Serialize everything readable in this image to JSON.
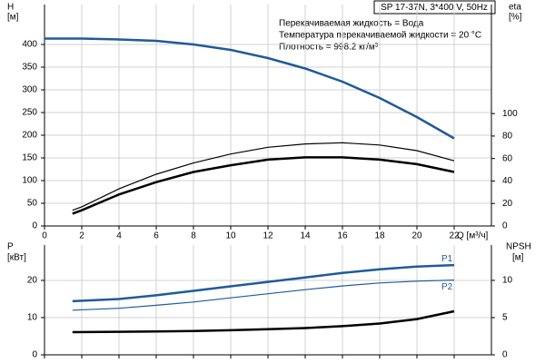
{
  "chart_data": [
    {
      "type": "line",
      "title": "SP 17-37N, 3*400 V, 50Hz",
      "annotations": [
        "Перекачиваемая жидкость = Вода",
        "Температура перекачиваемой жидкости = 20 °C",
        "Плотность = 998.2 кг/м³"
      ],
      "xlabel": "Q [м³/ч]",
      "ylabel": "H",
      "yunit": "[м]",
      "y2label": "eta",
      "y2unit": "[%]",
      "xlim": [
        0,
        24
      ],
      "xticks": [
        0,
        2,
        4,
        6,
        8,
        10,
        12,
        14,
        16,
        18,
        20,
        22
      ],
      "ylim": [
        0,
        488
      ],
      "yticks": [
        0,
        50,
        100,
        150,
        200,
        250,
        300,
        350,
        400
      ],
      "y2lim": [
        0,
        197
      ],
      "y2ticks": [
        0,
        20,
        40,
        60,
        80,
        100
      ],
      "grid": true,
      "series": [
        {
          "color": "#1f5b99",
          "width": 2.5,
          "axis": "y",
          "x": [
            0,
            2,
            4,
            6,
            8,
            10,
            12,
            14,
            16,
            18,
            20,
            22
          ],
          "values": [
            413,
            413,
            411,
            408,
            400,
            388,
            370,
            347,
            318,
            282,
            240,
            193
          ]
        },
        {
          "color": "#000000",
          "width": 1.2,
          "axis": "y2",
          "x": [
            1.5,
            2,
            4,
            6,
            8,
            10,
            12,
            14,
            16,
            18,
            20,
            22
          ],
          "values": [
            14,
            17,
            33,
            46,
            56,
            64,
            70,
            73,
            74,
            72,
            67,
            58
          ]
        },
        {
          "color": "#000000",
          "width": 2.5,
          "axis": "y2",
          "x": [
            1.5,
            2,
            4,
            6,
            8,
            10,
            12,
            14,
            16,
            18,
            20,
            22
          ],
          "values": [
            11,
            14,
            28,
            39,
            48,
            54,
            59,
            61,
            61,
            59,
            55,
            48
          ]
        }
      ]
    },
    {
      "type": "line",
      "ylabel": "P",
      "yunit": "[кВт]",
      "y2label": "NPSH",
      "y2unit": "[м]",
      "xlim": [
        0,
        24
      ],
      "ylim": [
        0,
        29.5
      ],
      "yticks": [
        0,
        10,
        20
      ],
      "y2lim": [
        0,
        14.75
      ],
      "y2ticks": [
        0,
        5,
        10
      ],
      "grid": true,
      "series": [
        {
          "name": "P1",
          "color": "#1f5b99",
          "width": 2.5,
          "axis": "y",
          "x": [
            1.5,
            4,
            6,
            8,
            10,
            12,
            14,
            16,
            18,
            20,
            22
          ],
          "values": [
            14.4,
            15,
            16,
            17.2,
            18.4,
            19.6,
            20.8,
            22,
            23,
            23.7,
            24.1
          ]
        },
        {
          "name": "P2",
          "color": "#1f5b99",
          "width": 1.2,
          "axis": "y",
          "x": [
            1.5,
            4,
            6,
            8,
            10,
            12,
            14,
            16,
            18,
            20,
            22
          ],
          "values": [
            12,
            12.5,
            13.3,
            14.2,
            15.3,
            16.4,
            17.5,
            18.5,
            19.3,
            19.8,
            20.1
          ]
        },
        {
          "color": "#000000",
          "width": 2.5,
          "axis": "y2",
          "x": [
            1.5,
            4,
            6,
            8,
            10,
            12,
            14,
            16,
            18,
            20,
            22
          ],
          "values": [
            3.05,
            3.1,
            3.15,
            3.2,
            3.3,
            3.45,
            3.6,
            3.85,
            4.2,
            4.8,
            5.85
          ]
        }
      ]
    }
  ]
}
